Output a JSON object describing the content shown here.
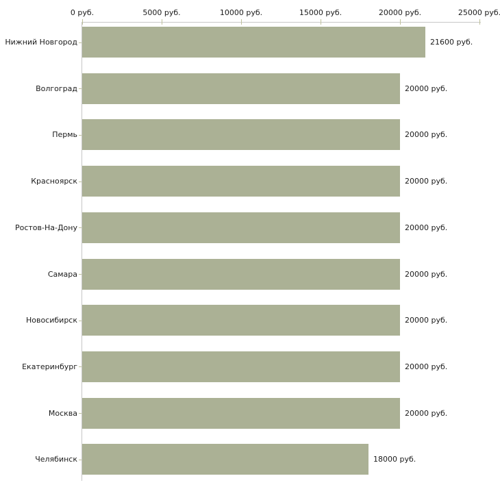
{
  "chart_data": {
    "type": "bar",
    "orientation": "horizontal",
    "title": "",
    "unit": "руб.",
    "categories": [
      "Нижний Новгород",
      "Волгоград",
      "Пермь",
      "Красноярск",
      "Ростов-На-Дону",
      "Самара",
      "Новосибирск",
      "Екатеринбург",
      "Москва",
      "Челябинск"
    ],
    "values": [
      21600,
      20000,
      20000,
      20000,
      20000,
      20000,
      20000,
      20000,
      20000,
      18000
    ],
    "value_labels": [
      "21600 руб.",
      "20000 руб.",
      "20000 руб.",
      "20000 руб.",
      "20000 руб.",
      "20000 руб.",
      "20000 руб.",
      "20000 руб.",
      "20000 руб.",
      "18000 руб."
    ],
    "x_axis": {
      "position": "top",
      "min": 0,
      "max": 25000,
      "ticks": [
        0,
        5000,
        10000,
        15000,
        20000,
        25000
      ],
      "tick_labels": [
        "0 руб.",
        "5000 руб.",
        "10000 руб.",
        "15000 руб.",
        "20000 руб.",
        "25000 руб."
      ]
    },
    "legend": null,
    "grid": false,
    "colors": {
      "bar": "#abb195",
      "axis_line": "#c6c6c6",
      "tick_mark": "#bfc19c",
      "text": "#1a1a1a",
      "background": "#ffffff"
    }
  }
}
